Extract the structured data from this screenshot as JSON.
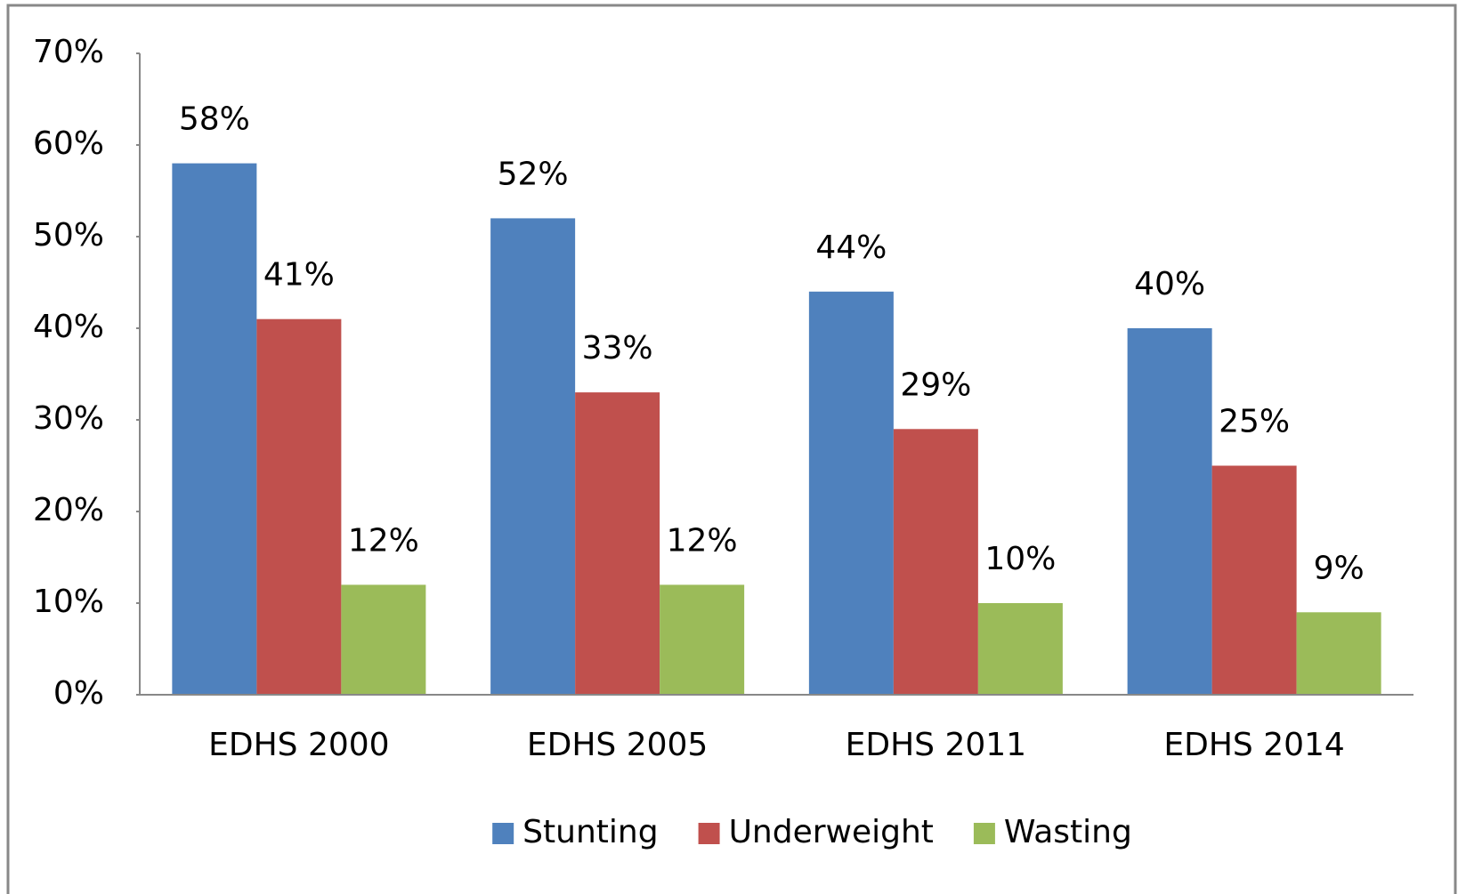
{
  "chart_data": {
    "type": "bar",
    "categories": [
      "EDHS 2000",
      "EDHS 2005",
      "EDHS 2011",
      "EDHS 2014"
    ],
    "series": [
      {
        "name": "Stunting",
        "color": "#4f81bd",
        "values": [
          58,
          52,
          44,
          40
        ],
        "value_labels": [
          "58%",
          "52%",
          "44%",
          "40%"
        ]
      },
      {
        "name": "Underweight",
        "color": "#c0504d",
        "values": [
          41,
          33,
          29,
          25
        ],
        "value_labels": [
          "41%",
          "33%",
          "29%",
          "25%"
        ]
      },
      {
        "name": "Wasting",
        "color": "#9bbb59",
        "values": [
          12,
          12,
          10,
          9
        ],
        "value_labels": [
          "12%",
          "12%",
          "10%",
          "9%"
        ]
      }
    ],
    "ylim": [
      0,
      70
    ],
    "yticks": [
      {
        "value": 0,
        "label": "0%"
      },
      {
        "value": 10,
        "label": "10%"
      },
      {
        "value": 20,
        "label": "20%"
      },
      {
        "value": 30,
        "label": "30%"
      },
      {
        "value": 40,
        "label": "40%"
      },
      {
        "value": 50,
        "label": "50%"
      },
      {
        "value": 60,
        "label": "60%"
      },
      {
        "value": 70,
        "label": "70%"
      }
    ],
    "grid": false,
    "legend": "bottom"
  }
}
